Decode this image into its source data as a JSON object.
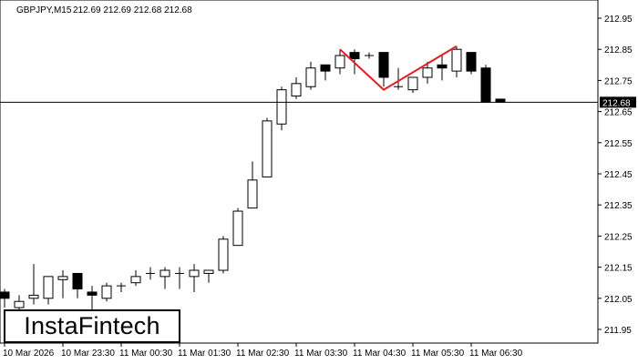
{
  "header": {
    "symbol": "GBPJPY,M15",
    "ohlc": "212.69 212.69 212.68 212.68"
  },
  "logo": {
    "text": "InstaFintech"
  },
  "colors": {
    "background": "#ffffff",
    "candle_up_fill": "#ffffff",
    "candle_down_fill": "#000000",
    "candle_outline": "#000000",
    "pattern_line": "#e31e24",
    "price_label_bg": "#000000",
    "price_label_text": "#ffffff"
  },
  "chart_data": {
    "type": "candlestick",
    "title": "GBPJPY,M15",
    "xlabel": "",
    "ylabel": "",
    "ylim": [
      211.91,
      213.01
    ],
    "y_ticks": [
      "212.95",
      "212.85",
      "212.75",
      "212.65",
      "212.55",
      "212.45",
      "212.35",
      "212.25",
      "212.15",
      "212.05",
      "211.95"
    ],
    "y_tick_values": [
      212.95,
      212.85,
      212.75,
      212.65,
      212.55,
      212.45,
      212.35,
      212.25,
      212.15,
      212.05,
      211.95
    ],
    "x_ticks": [
      "10 Mar 2026",
      "10 Mar 23:30",
      "11 Mar 00:30",
      "11 Mar 01:30",
      "11 Mar 02:30",
      "11 Mar 03:30",
      "11 Mar 04:30",
      "11 Mar 05:30",
      "11 Mar 06:30"
    ],
    "x_tick_candle_index": [
      0,
      4,
      8,
      12,
      16,
      20,
      24,
      28,
      32
    ],
    "current_price": 212.68,
    "current_price_label": "212.68",
    "candles": [
      {
        "o": 212.07,
        "h": 212.08,
        "l": 212.02,
        "c": 212.05
      },
      {
        "o": 212.02,
        "h": 212.06,
        "l": 212.01,
        "c": 212.04
      },
      {
        "o": 212.05,
        "h": 212.16,
        "l": 212.03,
        "c": 212.06
      },
      {
        "o": 212.05,
        "h": 212.12,
        "l": 212.03,
        "c": 212.12
      },
      {
        "o": 212.11,
        "h": 212.14,
        "l": 212.05,
        "c": 212.12
      },
      {
        "o": 212.13,
        "h": 212.13,
        "l": 212.05,
        "c": 212.08
      },
      {
        "o": 212.07,
        "h": 212.09,
        "l": 212.01,
        "c": 212.06
      },
      {
        "o": 212.05,
        "h": 212.1,
        "l": 212.04,
        "c": 212.09
      },
      {
        "o": 212.09,
        "h": 212.1,
        "l": 212.07,
        "c": 212.09
      },
      {
        "o": 212.1,
        "h": 212.14,
        "l": 212.09,
        "c": 212.12
      },
      {
        "o": 212.13,
        "h": 212.15,
        "l": 212.11,
        "c": 212.13
      },
      {
        "o": 212.12,
        "h": 212.15,
        "l": 212.08,
        "c": 212.14
      },
      {
        "o": 212.13,
        "h": 212.15,
        "l": 212.08,
        "c": 212.13
      },
      {
        "o": 212.12,
        "h": 212.16,
        "l": 212.07,
        "c": 212.14
      },
      {
        "o": 212.13,
        "h": 212.14,
        "l": 212.1,
        "c": 212.14
      },
      {
        "o": 212.14,
        "h": 212.25,
        "l": 212.13,
        "c": 212.24
      },
      {
        "o": 212.22,
        "h": 212.34,
        "l": 212.22,
        "c": 212.33
      },
      {
        "o": 212.34,
        "h": 212.49,
        "l": 212.34,
        "c": 212.43
      },
      {
        "o": 212.44,
        "h": 212.63,
        "l": 212.44,
        "c": 212.62
      },
      {
        "o": 212.61,
        "h": 212.73,
        "l": 212.59,
        "c": 212.72
      },
      {
        "o": 212.7,
        "h": 212.76,
        "l": 212.69,
        "c": 212.74
      },
      {
        "o": 212.73,
        "h": 212.81,
        "l": 212.72,
        "c": 212.79
      },
      {
        "o": 212.8,
        "h": 212.8,
        "l": 212.75,
        "c": 212.78
      },
      {
        "o": 212.79,
        "h": 212.85,
        "l": 212.77,
        "c": 212.83
      },
      {
        "o": 212.84,
        "h": 212.85,
        "l": 212.77,
        "c": 212.82
      },
      {
        "o": 212.83,
        "h": 212.84,
        "l": 212.82,
        "c": 212.83
      },
      {
        "o": 212.84,
        "h": 212.84,
        "l": 212.73,
        "c": 212.76
      },
      {
        "o": 212.73,
        "h": 212.79,
        "l": 212.72,
        "c": 212.73
      },
      {
        "o": 212.72,
        "h": 212.76,
        "l": 212.71,
        "c": 212.76
      },
      {
        "o": 212.76,
        "h": 212.81,
        "l": 212.74,
        "c": 212.79
      },
      {
        "o": 212.8,
        "h": 212.83,
        "l": 212.75,
        "c": 212.79
      },
      {
        "o": 212.78,
        "h": 212.86,
        "l": 212.76,
        "c": 212.85
      },
      {
        "o": 212.84,
        "h": 212.84,
        "l": 212.77,
        "c": 212.78
      },
      {
        "o": 212.79,
        "h": 212.8,
        "l": 212.68,
        "c": 212.68
      },
      {
        "o": 212.69,
        "h": 212.69,
        "l": 212.68,
        "c": 212.68
      }
    ],
    "pattern": {
      "name": "Double Top",
      "points": [
        {
          "candle_index": 23,
          "price": 212.85
        },
        {
          "candle_index": 26,
          "price": 212.72
        },
        {
          "candle_index": 31,
          "price": 212.86
        }
      ]
    }
  }
}
